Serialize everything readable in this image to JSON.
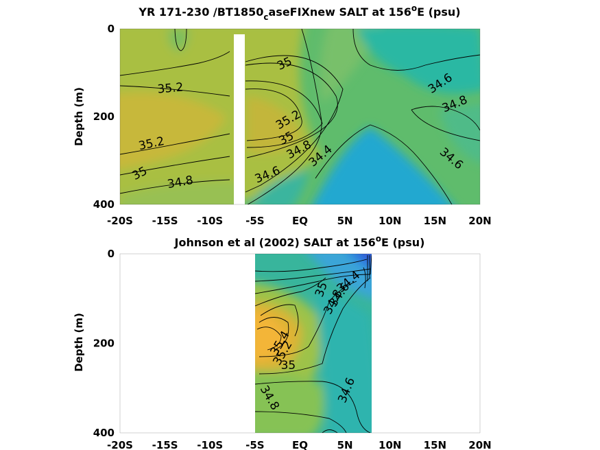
{
  "chart_data": [
    {
      "type": "heatmap",
      "title_main": "YR 171-230 /BT1850",
      "title_sub": "c",
      "title_rest": "aseFIXnew SALT at 156",
      "title_sup": "o",
      "title_end": "E (psu)",
      "ylabel": "Depth (m)",
      "x_ticks": [
        {
          "v": -20,
          "label": "-20S"
        },
        {
          "v": -15,
          "label": "-15S"
        },
        {
          "v": -10,
          "label": "-10S"
        },
        {
          "v": -5,
          "label": "-5S"
        },
        {
          "v": 0,
          "label": "EQ"
        },
        {
          "v": 5,
          "label": "5N"
        },
        {
          "v": 10,
          "label": "10N"
        },
        {
          "v": 15,
          "label": "15N"
        },
        {
          "v": 20,
          "label": "20N"
        }
      ],
      "y_ticks": [
        {
          "v": 0,
          "label": "0"
        },
        {
          "v": 200,
          "label": "200"
        },
        {
          "v": 400,
          "label": "400"
        }
      ],
      "xlim": [
        -20,
        20
      ],
      "ylim": [
        0,
        400
      ],
      "y_reversed": true,
      "data_extent": [
        -20,
        20
      ],
      "nodata_gaps": [
        [
          -7.5,
          -6.3
        ]
      ],
      "field": "model",
      "contour_labels": [
        {
          "text": "35",
          "x": -1.7,
          "y": 80,
          "rot": -25
        },
        {
          "text": "35.2",
          "x": -14.4,
          "y": 136,
          "rot": -5
        },
        {
          "text": "35.2",
          "x": -16.5,
          "y": 262,
          "rot": -12
        },
        {
          "text": "35",
          "x": -17.8,
          "y": 330,
          "rot": -28
        },
        {
          "text": "34.8",
          "x": -13.3,
          "y": 350,
          "rot": -10
        },
        {
          "text": "35.2",
          "x": -1.3,
          "y": 208,
          "rot": -30
        },
        {
          "text": "35",
          "x": -1.5,
          "y": 250,
          "rot": -28
        },
        {
          "text": "34.8",
          "x": -0.1,
          "y": 276,
          "rot": -28
        },
        {
          "text": "34.4",
          "x": 2.3,
          "y": 290,
          "rot": -40
        },
        {
          "text": "34.6",
          "x": -3.6,
          "y": 333,
          "rot": -22
        },
        {
          "text": "34.6",
          "x": 15.6,
          "y": 125,
          "rot": -33
        },
        {
          "text": "34.8",
          "x": 17.2,
          "y": 172,
          "rot": -22
        },
        {
          "text": "34.6",
          "x": 16.8,
          "y": 296,
          "rot": 40
        }
      ]
    },
    {
      "type": "heatmap",
      "title_main": "Johnson et al (2002) SALT at 156",
      "title_sup": "o",
      "title_end": "E (psu)",
      "ylabel": "Depth (m)",
      "x_ticks": [
        {
          "v": -20,
          "label": "-20S"
        },
        {
          "v": -15,
          "label": "-15S"
        },
        {
          "v": -10,
          "label": "-10S"
        },
        {
          "v": -5,
          "label": "-5S"
        },
        {
          "v": 0,
          "label": "EQ"
        },
        {
          "v": 5,
          "label": "5N"
        },
        {
          "v": 10,
          "label": "10N"
        },
        {
          "v": 15,
          "label": "15N"
        },
        {
          "v": 20,
          "label": "20N"
        }
      ],
      "y_ticks": [
        {
          "v": 0,
          "label": "0"
        },
        {
          "v": 200,
          "label": "200"
        },
        {
          "v": 400,
          "label": "400"
        }
      ],
      "xlim": [
        -20,
        20
      ],
      "ylim": [
        0,
        400
      ],
      "y_reversed": true,
      "data_extent": [
        -5,
        8
      ],
      "nodata_gaps": [],
      "field": "obs",
      "contour_labels": [
        {
          "text": "34.4",
          "x": 5.4,
          "y": 63,
          "rot": -40
        },
        {
          "text": "34.6",
          "x": 4.4,
          "y": 92,
          "rot": -55
        },
        {
          "text": "34.8",
          "x": 3.7,
          "y": 108,
          "rot": -62
        },
        {
          "text": "35",
          "x": 2.4,
          "y": 80,
          "rot": -70
        },
        {
          "text": "35.4",
          "x": -2.2,
          "y": 200,
          "rot": -60
        },
        {
          "text": "35.2",
          "x": -1.9,
          "y": 222,
          "rot": -60
        },
        {
          "text": "35",
          "x": -1.3,
          "y": 250,
          "rot": 0
        },
        {
          "text": "34.8",
          "x": -3.4,
          "y": 322,
          "rot": 60
        },
        {
          "text": "34.6",
          "x": 5.2,
          "y": 305,
          "rot": -68
        }
      ]
    }
  ]
}
